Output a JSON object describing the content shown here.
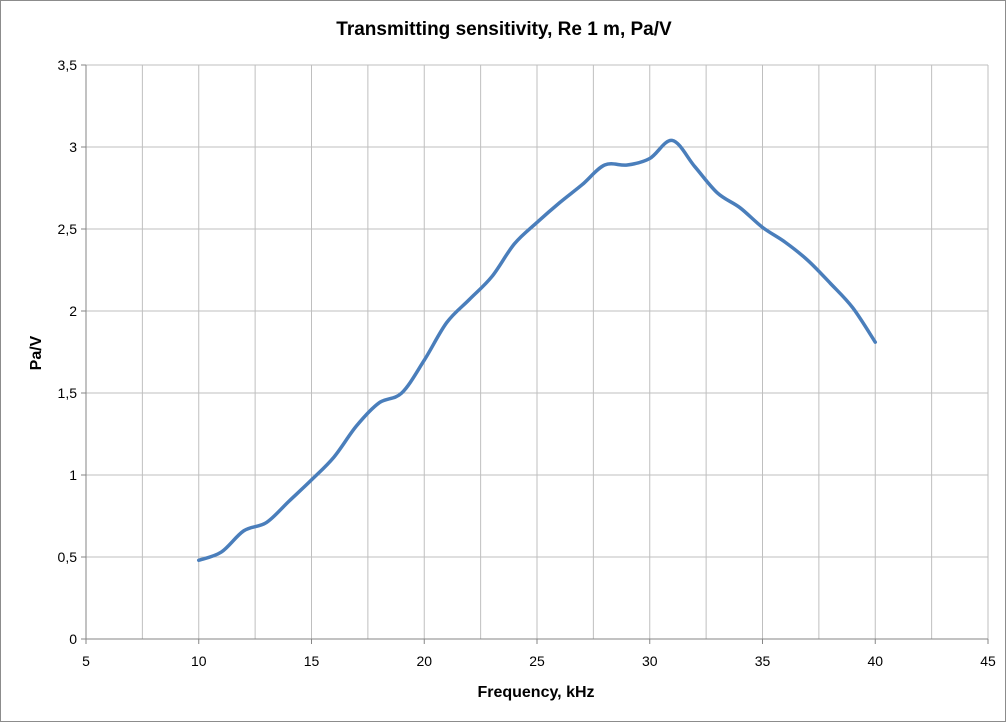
{
  "chart_data": {
    "type": "line",
    "title": "Transmitting sensitivity, Re 1 m, Pa/V",
    "xlabel": "Frequency, kHz",
    "ylabel": "Pa/V",
    "xlim": [
      5,
      45
    ],
    "ylim": [
      0,
      3.5
    ],
    "x_ticks": [
      5,
      10,
      15,
      20,
      25,
      30,
      35,
      40,
      45
    ],
    "x_tick_labels": [
      "5",
      "10",
      "15",
      "20",
      "25",
      "30",
      "35",
      "40",
      "45"
    ],
    "x_minor_grid_step": 2.5,
    "y_ticks": [
      0,
      0.5,
      1,
      1.5,
      2,
      2.5,
      3,
      3.5
    ],
    "y_tick_labels": [
      "0",
      "0,5",
      "1",
      "1,5",
      "2",
      "2,5",
      "3",
      "3,5"
    ],
    "grid": true,
    "legend": "none",
    "series_color": "#4a7ebb",
    "grid_color": "#bfbfbf",
    "series": [
      {
        "x": [
          10,
          11,
          12,
          13,
          14,
          15,
          16,
          17,
          18,
          19,
          20,
          21,
          22,
          23,
          24,
          25,
          26,
          27,
          28,
          29,
          30,
          31,
          32,
          33,
          34,
          35,
          36,
          37,
          38,
          39,
          40
        ],
        "values": [
          0.48,
          0.53,
          0.66,
          0.71,
          0.84,
          0.97,
          1.11,
          1.3,
          1.44,
          1.5,
          1.7,
          1.93,
          2.07,
          2.21,
          2.41,
          2.54,
          2.66,
          2.77,
          2.89,
          2.89,
          2.93,
          3.04,
          2.88,
          2.72,
          2.63,
          2.51,
          2.42,
          2.31,
          2.17,
          2.02,
          1.81
        ]
      }
    ]
  }
}
